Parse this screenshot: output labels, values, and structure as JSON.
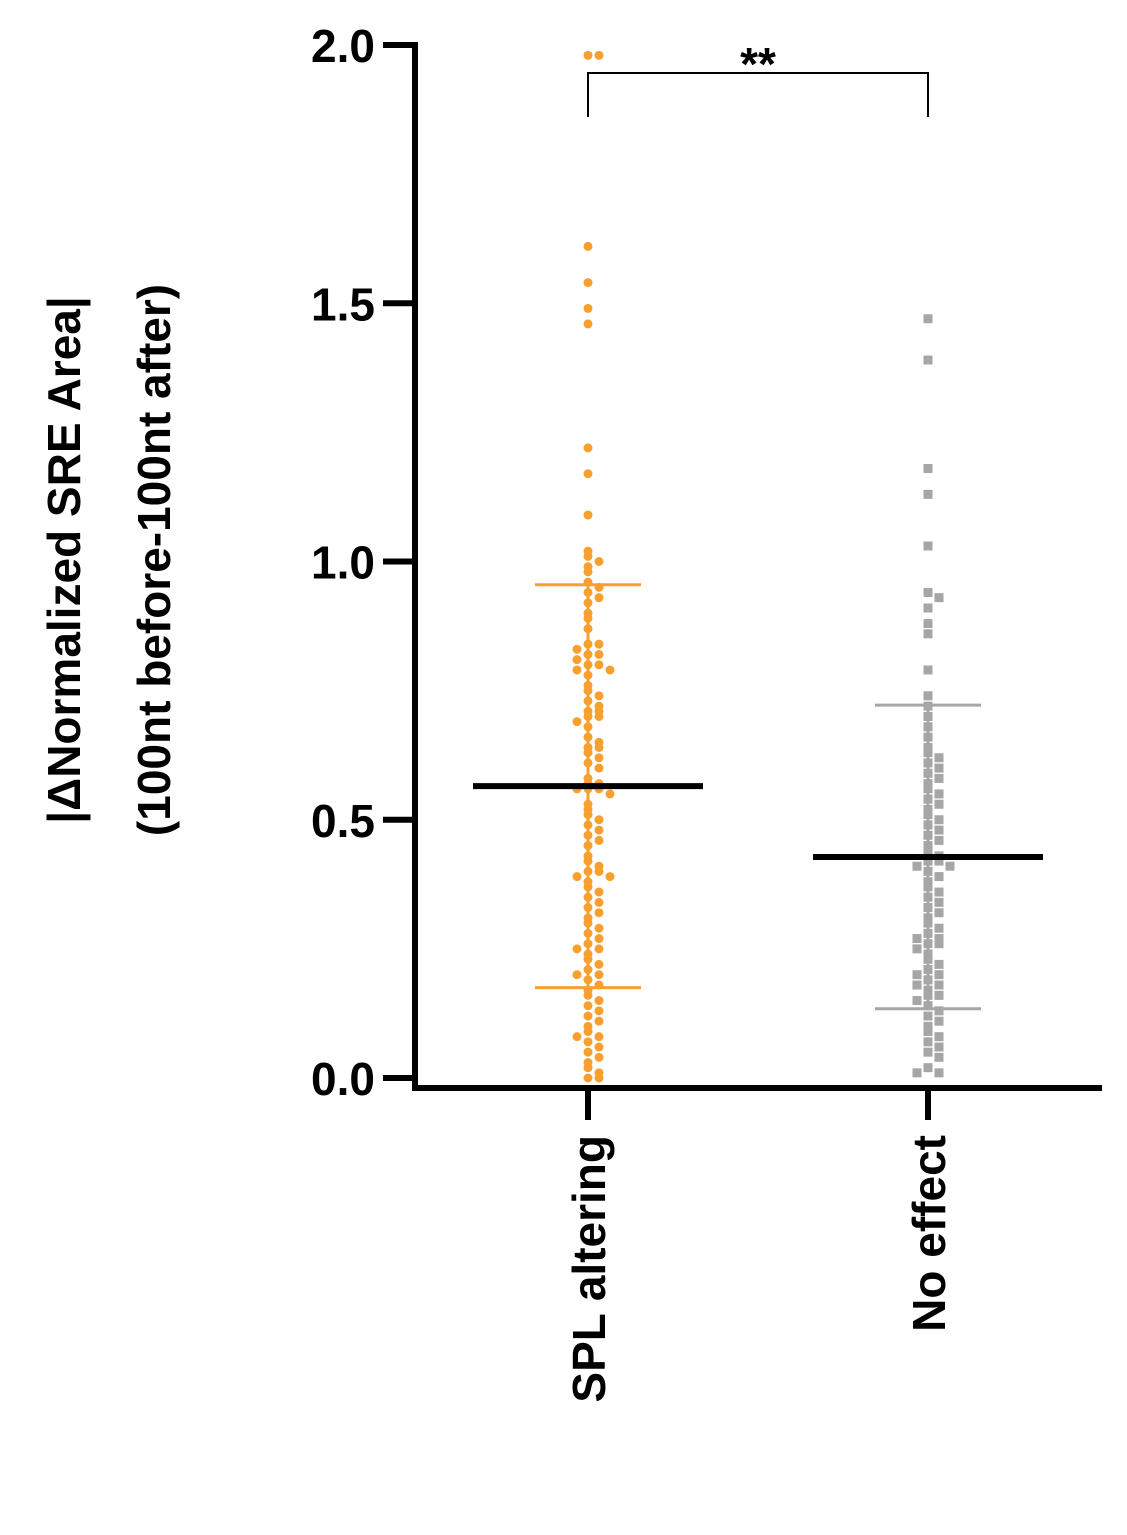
{
  "chart_data": {
    "type": "strip",
    "ylabel": [
      "|ΔNormalized SRE Area|",
      "(100nt before-100nt after)"
    ],
    "categories": [
      "SPL altering",
      "No effect"
    ],
    "ylim": [
      0,
      2.0
    ],
    "yticks": [
      {
        "value": 0,
        "label": "0.0"
      },
      0.5,
      {
        "value": 1,
        "label": "1.0"
      },
      {
        "value": 1.5,
        "label": "1.5"
      },
      {
        "value": 2,
        "label": "2.0"
      }
    ],
    "annotations": [
      {
        "text": "**"
      }
    ],
    "series": [
      {
        "name": "SPL altering",
        "color": "#f7a030",
        "marker": "circle",
        "mean": 0.565,
        "sd": 0.39,
        "values": [
          1.98,
          1.98,
          1.61,
          1.54,
          1.49,
          1.46,
          1.22,
          1.17,
          1.09,
          1.02,
          1.01,
          1.0,
          0.99,
          0.98,
          0.96,
          0.95,
          0.94,
          0.93,
          0.92,
          0.9,
          0.89,
          0.87,
          0.84,
          0.84,
          0.83,
          0.82,
          0.82,
          0.81,
          0.8,
          0.8,
          0.79,
          0.79,
          0.78,
          0.76,
          0.75,
          0.74,
          0.73,
          0.72,
          0.71,
          0.71,
          0.7,
          0.7,
          0.69,
          0.68,
          0.66,
          0.65,
          0.64,
          0.64,
          0.63,
          0.62,
          0.61,
          0.6,
          0.58,
          0.57,
          0.57,
          0.56,
          0.56,
          0.56,
          0.55,
          0.53,
          0.52,
          0.51,
          0.5,
          0.49,
          0.48,
          0.47,
          0.46,
          0.45,
          0.43,
          0.42,
          0.41,
          0.4,
          0.4,
          0.39,
          0.39,
          0.38,
          0.37,
          0.36,
          0.35,
          0.34,
          0.33,
          0.32,
          0.31,
          0.3,
          0.29,
          0.28,
          0.27,
          0.26,
          0.25,
          0.25,
          0.24,
          0.23,
          0.22,
          0.21,
          0.2,
          0.2,
          0.19,
          0.18,
          0.17,
          0.16,
          0.15,
          0.14,
          0.13,
          0.12,
          0.11,
          0.1,
          0.09,
          0.08,
          0.08,
          0.07,
          0.06,
          0.05,
          0.04,
          0.03,
          0.02,
          0.01,
          0.0,
          0.0
        ]
      },
      {
        "name": "No effect",
        "color": "#a6a6a6",
        "marker": "square",
        "mean": 0.428,
        "sd": 0.294,
        "values": [
          1.47,
          1.39,
          1.18,
          1.13,
          1.03,
          0.94,
          0.93,
          0.91,
          0.88,
          0.86,
          0.79,
          0.74,
          0.72,
          0.7,
          0.68,
          0.66,
          0.64,
          0.63,
          0.62,
          0.61,
          0.6,
          0.59,
          0.58,
          0.57,
          0.56,
          0.55,
          0.54,
          0.53,
          0.52,
          0.51,
          0.5,
          0.49,
          0.48,
          0.47,
          0.46,
          0.45,
          0.44,
          0.43,
          0.42,
          0.42,
          0.41,
          0.41,
          0.4,
          0.39,
          0.38,
          0.37,
          0.36,
          0.35,
          0.34,
          0.33,
          0.32,
          0.31,
          0.3,
          0.29,
          0.28,
          0.27,
          0.27,
          0.26,
          0.26,
          0.25,
          0.24,
          0.23,
          0.22,
          0.21,
          0.2,
          0.2,
          0.19,
          0.18,
          0.18,
          0.17,
          0.16,
          0.16,
          0.15,
          0.14,
          0.13,
          0.12,
          0.11,
          0.1,
          0.09,
          0.08,
          0.07,
          0.06,
          0.05,
          0.04,
          0.02,
          0.01,
          0.01
        ]
      }
    ]
  }
}
